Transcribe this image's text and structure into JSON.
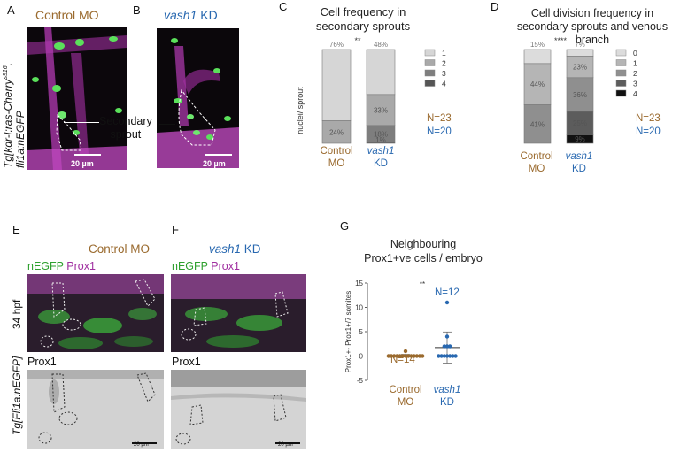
{
  "panels": {
    "A": {
      "letter": "A",
      "title": "Control MO",
      "ylabel": "Tg[kdr-l:ras-Cherry",
      "ylabel_sup": "s916",
      "ylabel_suffix": ",",
      "ylabel2": "fli1a:nEGFP",
      "annotation": "Secondary",
      "annotation2": "sprout",
      "scale": "20 µm"
    },
    "B": {
      "letter": "B",
      "title_italic": "vash1",
      "title_rest": " KD",
      "scale": "20 µm"
    },
    "C": {
      "letter": "C",
      "title_line1": "Cell frequency in",
      "title_line2": "secondary sprouts",
      "ylabel": "nuclei/ sprout",
      "sig": "**",
      "n_control": "N=23",
      "n_vash": "N=20",
      "xlabel_control_1": "Control",
      "xlabel_control_2": "MO",
      "xlabel_vash_1": "vash1",
      "xlabel_vash_2": "KD"
    },
    "D": {
      "letter": "D",
      "title_line1": "Cell division frequency in",
      "title_line2": "secondary sprouts and venous branch",
      "sig": "****",
      "n_control": "N=23",
      "n_vash": "N=20",
      "xlabel_control_1": "Control",
      "xlabel_control_2": "MO",
      "xlabel_vash_1": "vash1",
      "xlabel_vash_2": "KD"
    },
    "E": {
      "letter": "E",
      "title": "Control MO",
      "channel_green": "nEGFP",
      "channel_magenta": " Prox1",
      "stage": "34 hpf",
      "side_label": "Tg[Fli1a:nEGFP]",
      "bottom_label": "Prox1",
      "scale": "20 µm"
    },
    "F": {
      "letter": "F",
      "title_italic": "vash1",
      "title_rest": " KD",
      "channel_green": "nEGFP",
      "channel_magenta": " Prox1",
      "bottom_label": "Prox1",
      "scale": "20 µm"
    },
    "G": {
      "letter": "G",
      "title_line1": "Neighbouring",
      "title_line2": "Prox1+ve cells / embryo",
      "ylabel": "Prox1+- Prox1+/7 somites",
      "sig": "**",
      "n_control": "N=14",
      "n_vash": "N=12",
      "xlabel_control_1": "Control",
      "xlabel_control_2": "MO",
      "xlabel_vash_1": "vash1",
      "xlabel_vash_2": "KD"
    }
  },
  "colors": {
    "control": "#9a6a2e",
    "vash": "#2868b0"
  },
  "chart_data": [
    {
      "id": "C",
      "type": "bar",
      "stacked": true,
      "title": "Cell frequency in secondary sprouts",
      "ylabel": "nuclei/ sprout",
      "categories": [
        "Control MO",
        "vash1 KD"
      ],
      "legend": [
        "1",
        "2",
        "3",
        "4"
      ],
      "legend_colors": [
        "#d6d6d6",
        "#a9a9a9",
        "#7e7e7e",
        "#555555"
      ],
      "series": [
        {
          "name": "1",
          "values": [
            76,
            48
          ]
        },
        {
          "name": "2",
          "values": [
            24,
            33
          ]
        },
        {
          "name": "3",
          "values": [
            0,
            18
          ]
        },
        {
          "name": "4",
          "values": [
            0,
            1
          ]
        }
      ],
      "value_labels": [
        [
          "76%",
          "24%",
          "",
          ""
        ],
        [
          "48%",
          "33%",
          "18%",
          "1%"
        ]
      ]
    },
    {
      "id": "D",
      "type": "bar",
      "stacked": true,
      "title": "Cell division frequency in secondary sprouts and venous branch",
      "categories": [
        "Control MO",
        "vash1 KD"
      ],
      "legend": [
        "0",
        "1",
        "2",
        "3",
        "4"
      ],
      "legend_colors": [
        "#dcdcdc",
        "#b5b5b5",
        "#8f8f8f",
        "#5c5c5c",
        "#111111"
      ],
      "series": [
        {
          "name": "0",
          "values": [
            15,
            7
          ]
        },
        {
          "name": "1",
          "values": [
            44,
            23
          ]
        },
        {
          "name": "2",
          "values": [
            41,
            36
          ]
        },
        {
          "name": "3",
          "values": [
            0,
            25
          ]
        },
        {
          "name": "4",
          "values": [
            0,
            9
          ]
        }
      ],
      "value_labels": [
        [
          "15%",
          "44%",
          "41%",
          "",
          ""
        ],
        [
          "7%",
          "23%",
          "36%",
          "25%",
          "9%"
        ]
      ]
    },
    {
      "id": "G",
      "type": "scatter",
      "title": "Neighbouring Prox1+ve cells / embryo",
      "ylabel": "Prox1+- Prox1+/7 somites",
      "categories": [
        "Control MO",
        "vash1 KD"
      ],
      "ylim": [
        -5,
        15
      ],
      "yticks": [
        -5,
        0,
        5,
        10,
        15
      ],
      "series": [
        {
          "name": "Control MO",
          "values": [
            0,
            0,
            0,
            0,
            0,
            0,
            0,
            0,
            0,
            0,
            0,
            0,
            0,
            1
          ],
          "mean": 0.07,
          "sd": 0.27
        },
        {
          "name": "vash1 KD",
          "values": [
            11,
            4,
            2,
            2,
            2,
            0,
            0,
            0,
            0,
            0,
            0,
            0
          ],
          "mean": 1.75,
          "sd": 3.2
        }
      ]
    }
  ]
}
